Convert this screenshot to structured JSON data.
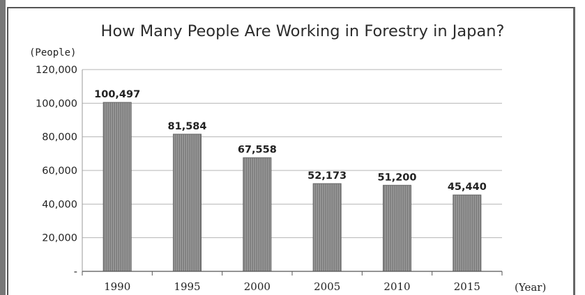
{
  "chart_data": {
    "type": "bar",
    "title": "How Many People Are Working in Forestry in Japan?",
    "ylabel": "(People)",
    "xlabel": "(Year)",
    "categories": [
      "1990",
      "1995",
      "2000",
      "2005",
      "2010",
      "2015"
    ],
    "values": [
      100497,
      81584,
      67558,
      52173,
      51200,
      45440
    ],
    "data_labels": [
      "100,497",
      "81,584",
      "67,558",
      "52,173",
      "51,200",
      "45,440"
    ],
    "ylim": [
      0,
      120000
    ],
    "yticks": [
      0,
      20000,
      40000,
      60000,
      80000,
      100000,
      120000
    ],
    "ytick_labels": [
      "-",
      "20,000",
      "40,000",
      "60,000",
      "80,000",
      "100,000",
      "120,000"
    ],
    "grid": true,
    "legend": "none",
    "bar_color": "#8c8c8c"
  }
}
